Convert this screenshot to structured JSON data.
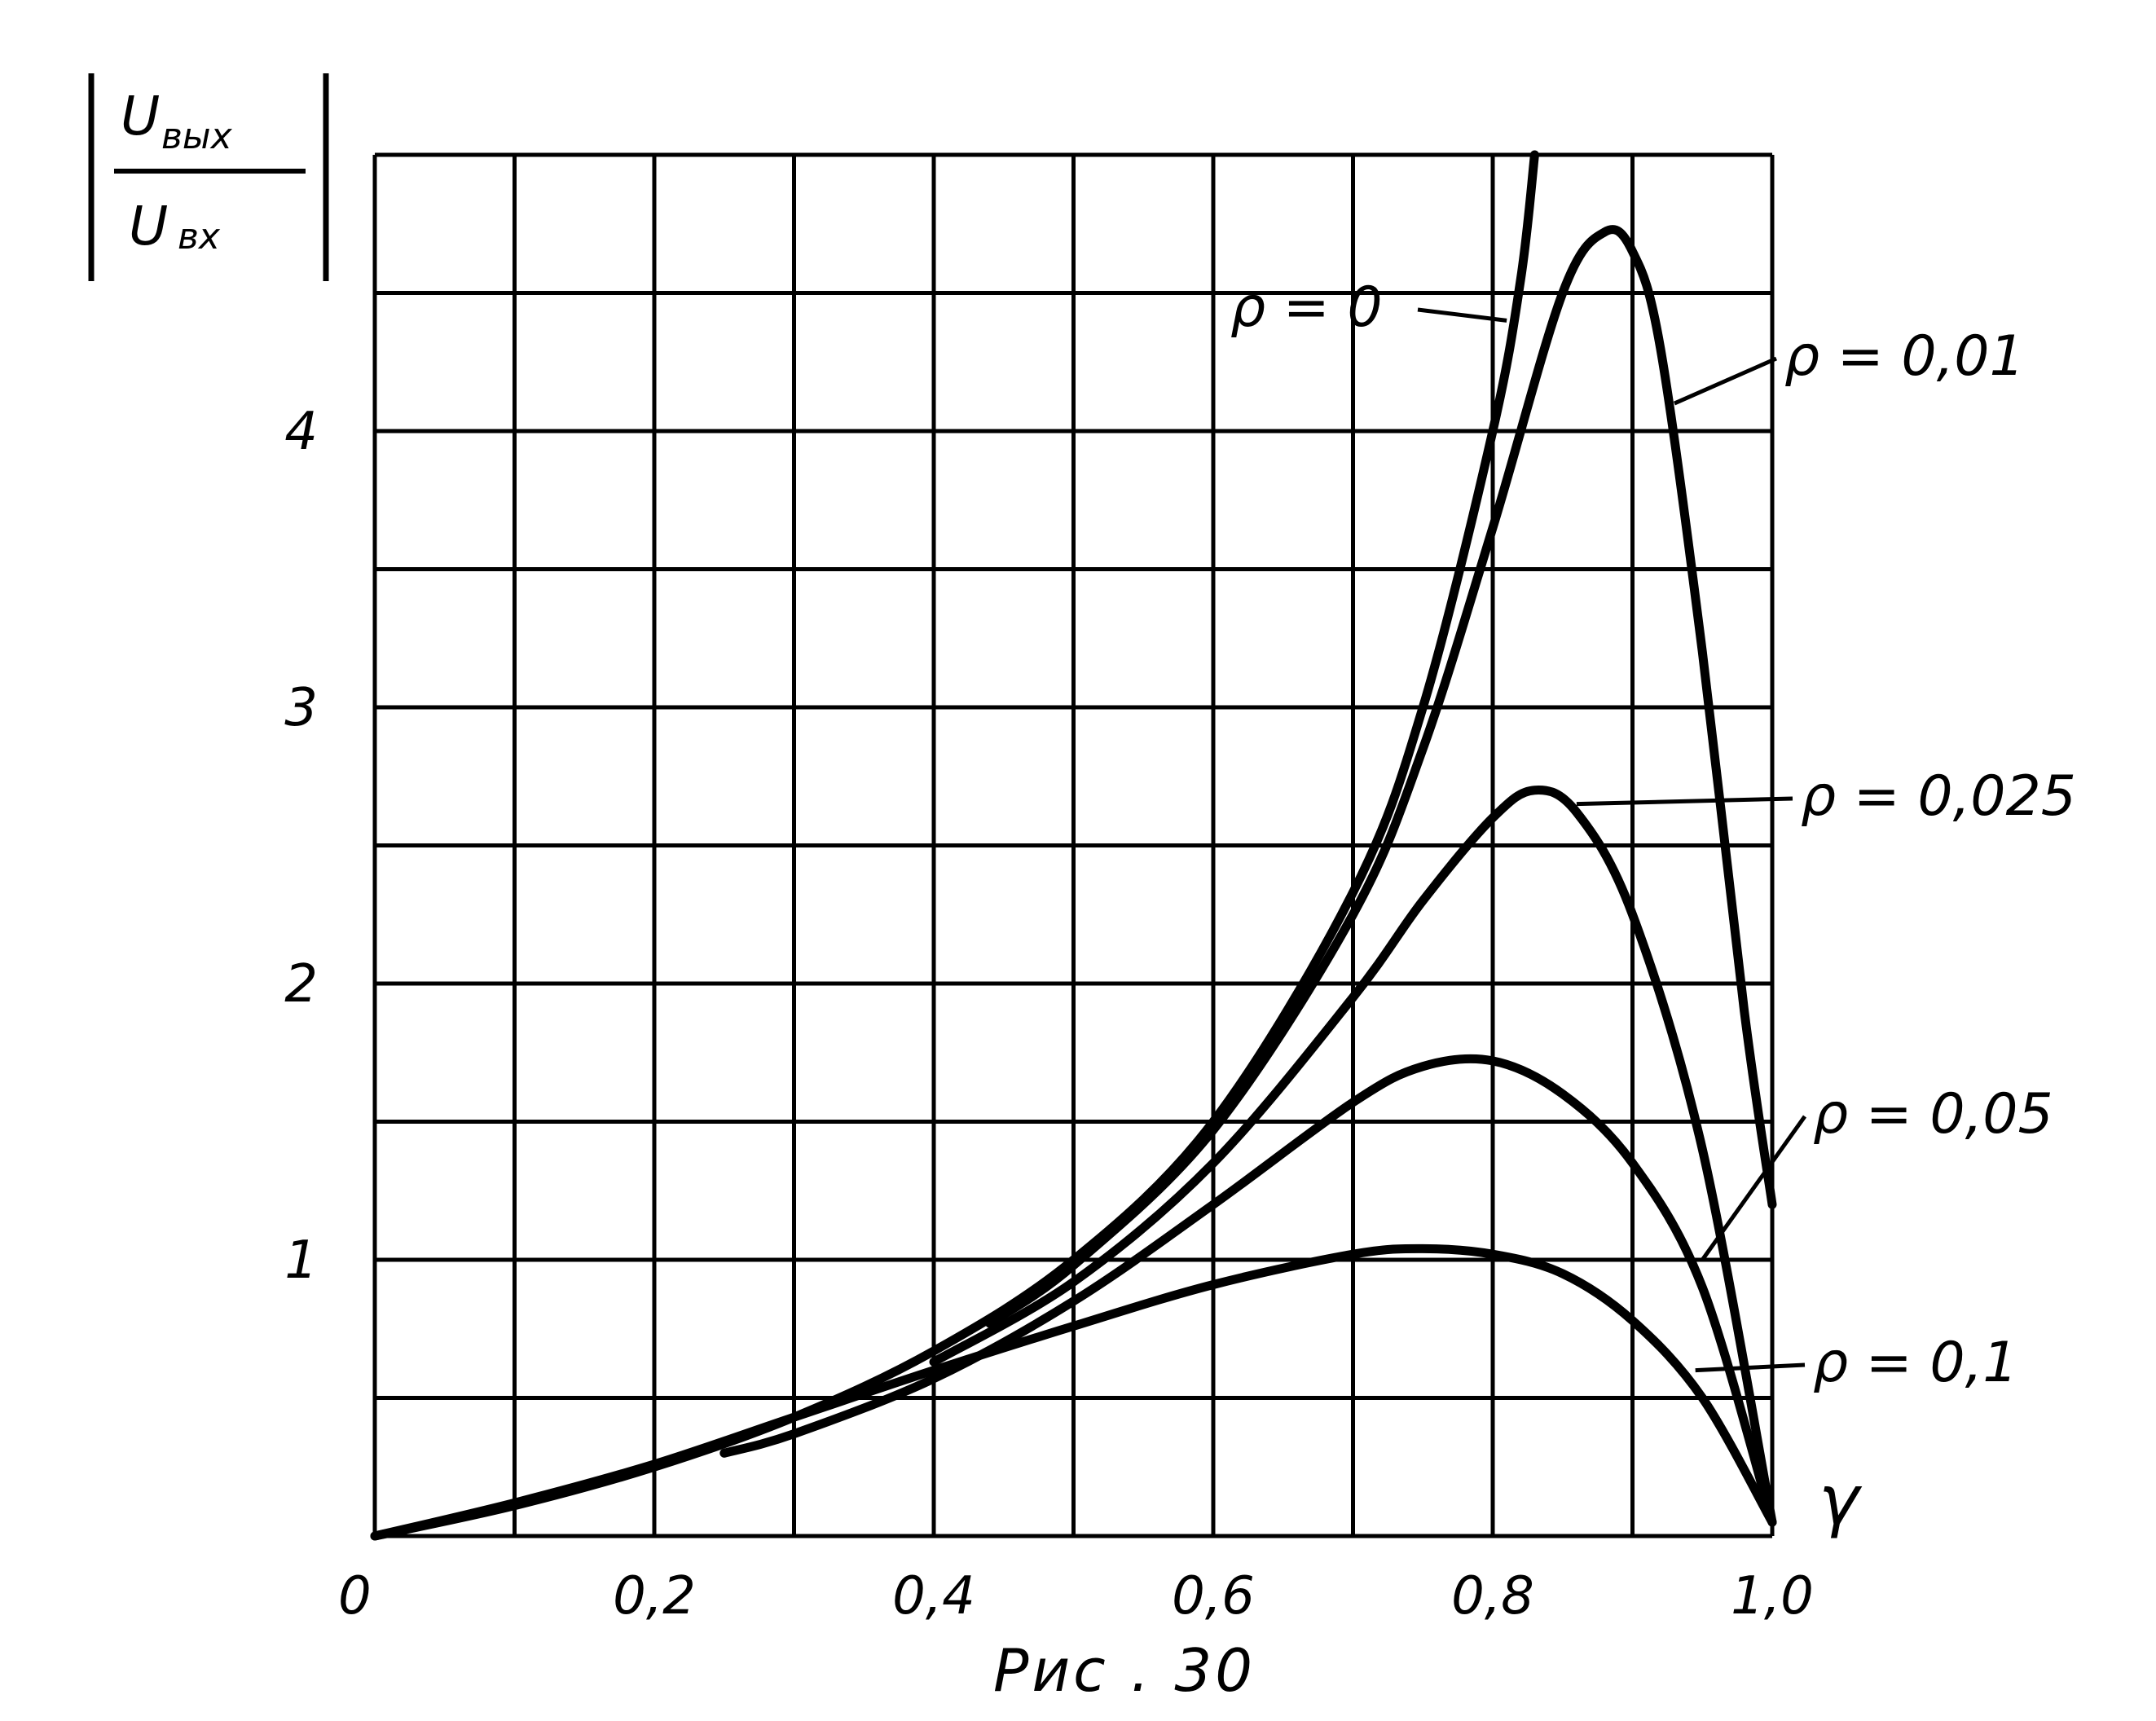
{
  "chart_data": {
    "type": "line",
    "title": "",
    "caption": "Рис . 30",
    "xlabel": "γ",
    "ylabel": {
      "numerator_main": "U",
      "numerator_sub": "вых",
      "denominator_main": "U",
      "denominator_sub": "вх"
    },
    "xlim": [
      0,
      1.0
    ],
    "ylim": [
      0,
      5.0
    ],
    "grid": true,
    "x_ticks": [
      {
        "value": 0,
        "label": "0"
      },
      {
        "value": 0.2,
        "label": "0,2"
      },
      {
        "value": 0.4,
        "label": "0,4"
      },
      {
        "value": 0.6,
        "label": "0,6"
      },
      {
        "value": 0.8,
        "label": "0,8"
      },
      {
        "value": 1.0,
        "label": "1,0"
      }
    ],
    "y_ticks": [
      {
        "value": 1,
        "label": "1"
      },
      {
        "value": 2,
        "label": "2"
      },
      {
        "value": 3,
        "label": "3"
      },
      {
        "value": 4,
        "label": "4"
      }
    ],
    "series": [
      {
        "name": "ρ = 0",
        "x": [
          0,
          0.1,
          0.2,
          0.3,
          0.4,
          0.5,
          0.6,
          0.7,
          0.75,
          0.8,
          0.82,
          0.83
        ],
        "y": [
          0,
          0.11,
          0.25,
          0.43,
          0.67,
          1.0,
          1.5,
          2.33,
          3.0,
          4.0,
          4.55,
          5.0
        ]
      },
      {
        "name": "ρ = 0,01",
        "x": [
          0.44,
          0.5,
          0.6,
          0.7,
          0.75,
          0.8,
          0.85,
          0.88,
          0.9,
          0.92,
          0.95,
          0.98,
          1.0
        ],
        "y": [
          0.77,
          0.98,
          1.47,
          2.25,
          2.85,
          3.65,
          4.5,
          4.72,
          4.65,
          4.3,
          3.2,
          1.9,
          1.2
        ]
      },
      {
        "name": "ρ = 0,025",
        "x": [
          0.4,
          0.5,
          0.6,
          0.7,
          0.75,
          0.8,
          0.83,
          0.86,
          0.9,
          0.95,
          1.0
        ],
        "y": [
          0.63,
          0.92,
          1.35,
          1.95,
          2.3,
          2.6,
          2.7,
          2.62,
          2.25,
          1.4,
          0.05
        ]
      },
      {
        "name": "ρ = 0,05",
        "x": [
          0.25,
          0.3,
          0.4,
          0.5,
          0.6,
          0.7,
          0.75,
          0.8,
          0.85,
          0.9,
          0.95,
          1.0
        ],
        "y": [
          0.3,
          0.37,
          0.57,
          0.85,
          1.2,
          1.57,
          1.7,
          1.72,
          1.6,
          1.35,
          0.9,
          0.05
        ]
      },
      {
        "name": "ρ = 0,1",
        "x": [
          0,
          0.1,
          0.2,
          0.3,
          0.4,
          0.5,
          0.6,
          0.7,
          0.75,
          0.8,
          0.85,
          0.9,
          0.95,
          1.0
        ],
        "y": [
          0,
          0.12,
          0.26,
          0.43,
          0.6,
          0.76,
          0.91,
          1.02,
          1.04,
          1.02,
          0.95,
          0.78,
          0.5,
          0.05
        ]
      }
    ]
  }
}
